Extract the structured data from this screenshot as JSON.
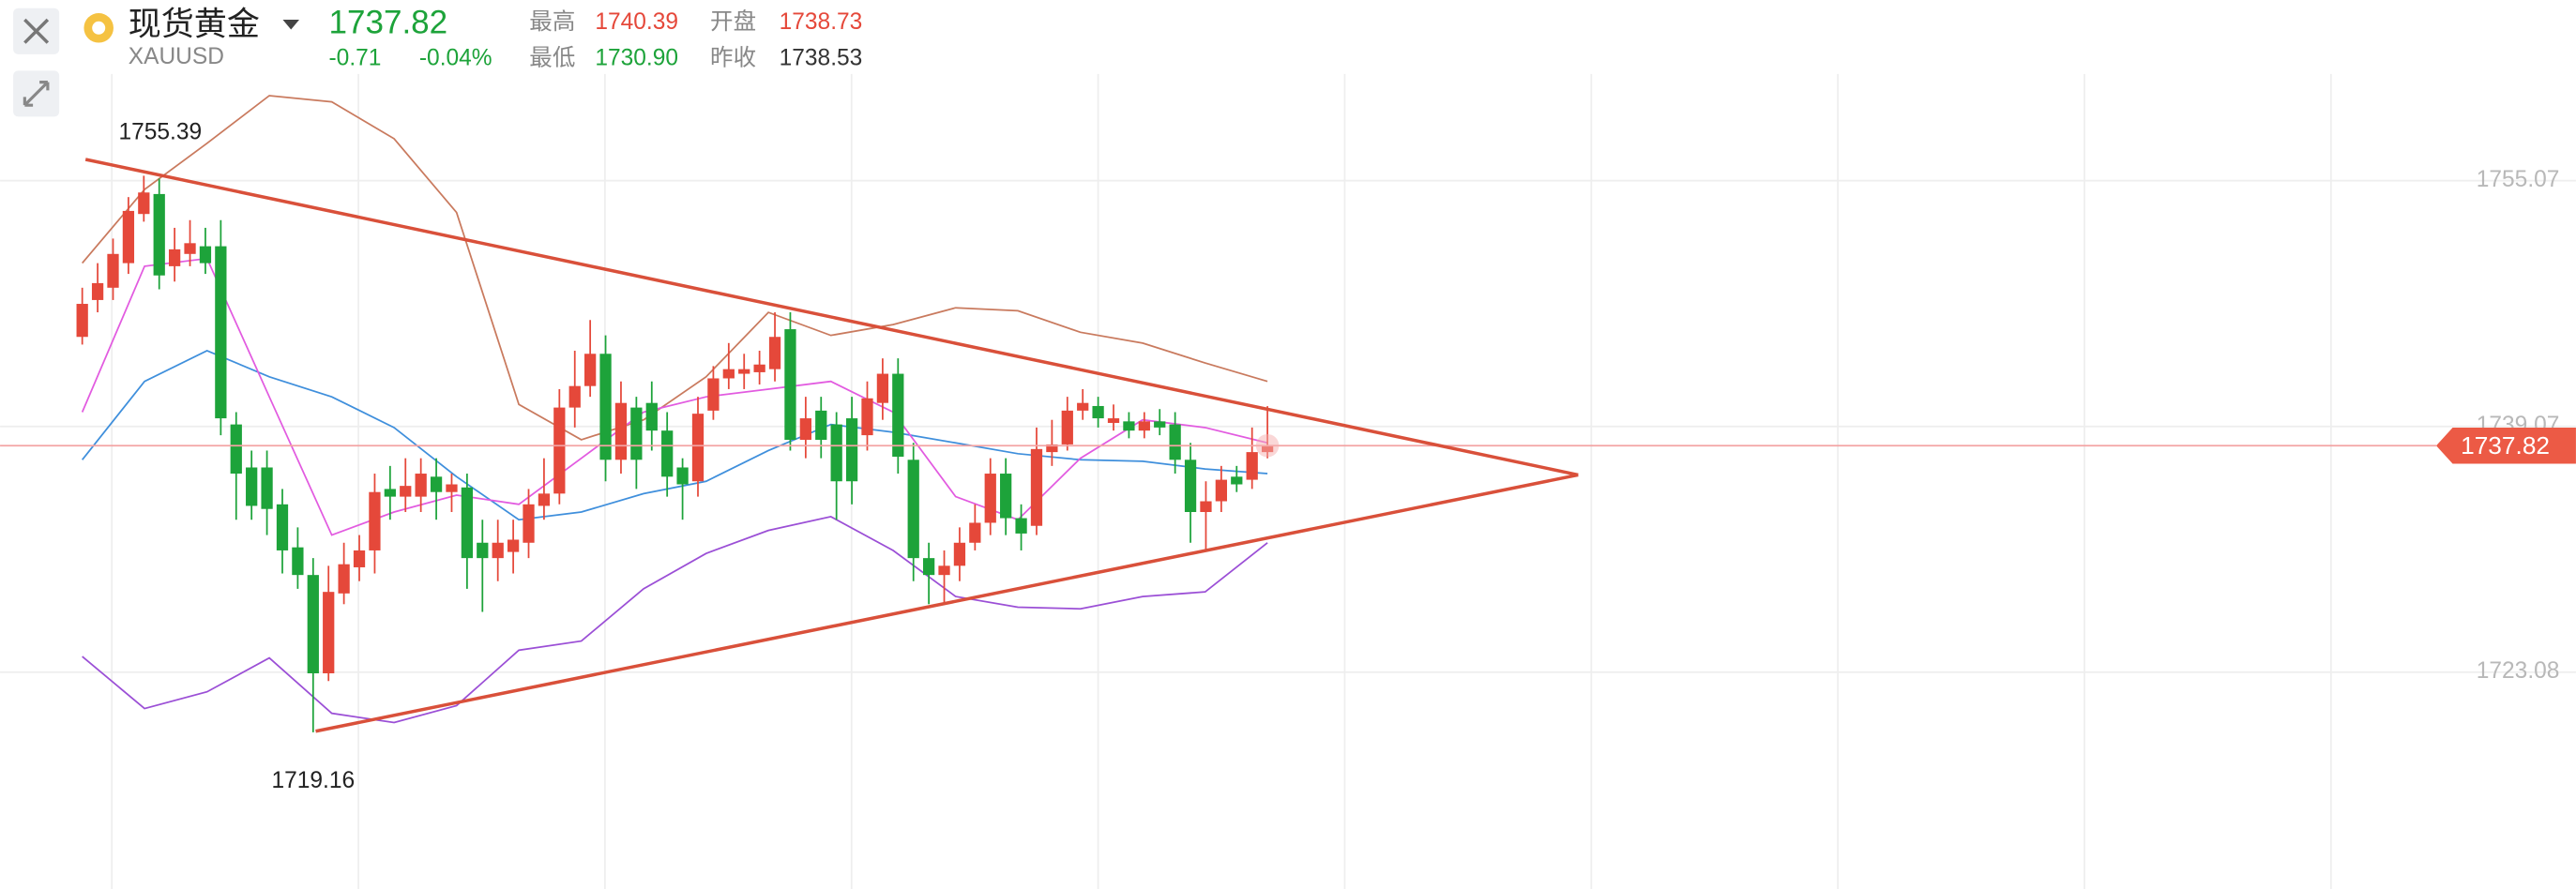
{
  "header": {
    "name": "现货黄金",
    "symbol": "XAUUSD",
    "price": "1737.82",
    "change": "-0.71",
    "change_pct": "-0.04%",
    "stats": [
      {
        "label": "最高",
        "value": "1740.39"
      },
      {
        "label": "开盘",
        "value": "1738.73"
      },
      {
        "label": "最低",
        "value": "1730.90"
      },
      {
        "label": "昨收",
        "value": "1738.53"
      }
    ]
  },
  "chart_data": {
    "type": "candlestick",
    "up_color": "#e5483a",
    "down_color": "#1da33a",
    "ylim": [
      1708.96,
      1766.83
    ],
    "yticks": [
      1723.08,
      1739.07,
      1755.07
    ],
    "grid": true,
    "last_price": 1737.82,
    "high_label": 1755.39,
    "low_label": 1719.16,
    "open": [
      1744.9,
      1747.3,
      1748.1,
      1749.7,
      1752.9,
      1754.2,
      1749.5,
      1750.3,
      1750.8,
      1750.8,
      1739.2,
      1736.4,
      1736.4,
      1734.0,
      1731.2,
      1729.4,
      1723.0,
      1728.2,
      1729.9,
      1731.0,
      1735.0,
      1734.5,
      1734.5,
      1735.8,
      1734.8,
      1735.1,
      1731.5,
      1730.5,
      1730.9,
      1731.5,
      1733.9,
      1734.7,
      1740.3,
      1741.7,
      1743.8,
      1736.9,
      1740.3,
      1740.6,
      1738.8,
      1736.4,
      1735.5,
      1740.1,
      1742.2,
      1742.5,
      1742.6,
      1742.8,
      1745.4,
      1738.2,
      1740.1,
      1739.2,
      1739.6,
      1738.5,
      1740.6,
      1742.5,
      1736.9,
      1730.5,
      1729.4,
      1730.0,
      1731.5,
      1732.8,
      1736.0,
      1733.1,
      1732.6,
      1737.4,
      1737.9,
      1740.1,
      1740.4,
      1739.3,
      1739.4,
      1738.8,
      1739.4,
      1739.2,
      1736.9,
      1733.5,
      1734.2,
      1735.8,
      1735.6,
      1737.4
    ],
    "high": [
      1748.1,
      1749.7,
      1751.3,
      1754.0,
      1755.39,
      1755.2,
      1752.0,
      1752.5,
      1752.0,
      1752.5,
      1740.0,
      1737.5,
      1737.5,
      1735.0,
      1732.5,
      1730.5,
      1730.0,
      1731.5,
      1732.0,
      1736.0,
      1736.5,
      1737.0,
      1737.0,
      1737.0,
      1736.0,
      1736.0,
      1733.0,
      1733.0,
      1733.0,
      1735.0,
      1737.0,
      1741.5,
      1744.0,
      1746.0,
      1745.0,
      1742.0,
      1741.0,
      1742.0,
      1740.0,
      1737.0,
      1741.0,
      1743.0,
      1744.5,
      1743.8,
      1744.0,
      1746.5,
      1746.5,
      1741.0,
      1741.0,
      1740.0,
      1741.0,
      1742.0,
      1743.5,
      1743.5,
      1738.0,
      1731.5,
      1731.0,
      1732.5,
      1734.0,
      1737.0,
      1737.0,
      1734.0,
      1739.0,
      1739.5,
      1741.0,
      1741.5,
      1741.0,
      1740.5,
      1740.0,
      1740.0,
      1740.2,
      1740.0,
      1738.0,
      1735.5,
      1736.5,
      1736.5,
      1739.0,
      1740.39
    ],
    "low": [
      1744.4,
      1746.5,
      1747.3,
      1749.0,
      1752.4,
      1748.0,
      1748.5,
      1749.5,
      1749.0,
      1738.5,
      1733.0,
      1733.0,
      1732.0,
      1729.5,
      1728.5,
      1719.16,
      1722.5,
      1727.5,
      1729.0,
      1729.5,
      1733.0,
      1733.5,
      1733.5,
      1733.0,
      1733.5,
      1728.5,
      1727.0,
      1729.0,
      1729.5,
      1730.5,
      1733.0,
      1734.0,
      1739.0,
      1741.0,
      1735.5,
      1736.0,
      1735.0,
      1737.5,
      1734.5,
      1733.0,
      1734.5,
      1739.5,
      1741.5,
      1741.5,
      1741.8,
      1742.0,
      1737.5,
      1737.0,
      1737.0,
      1733.0,
      1734.0,
      1737.5,
      1739.5,
      1736.0,
      1729.0,
      1727.5,
      1727.5,
      1729.0,
      1731.0,
      1732.0,
      1732.0,
      1731.0,
      1732.0,
      1736.5,
      1737.5,
      1739.5,
      1739.0,
      1738.8,
      1738.3,
      1738.3,
      1738.5,
      1736.0,
      1731.5,
      1731.0,
      1733.5,
      1734.8,
      1735.0,
      1737.0
    ],
    "close": [
      1747.05,
      1748.4,
      1750.3,
      1753.1,
      1754.3,
      1748.9,
      1750.6,
      1751.0,
      1749.7,
      1739.6,
      1736.0,
      1733.9,
      1733.7,
      1731.0,
      1729.4,
      1723.0,
      1728.3,
      1730.1,
      1731.0,
      1734.8,
      1734.5,
      1735.2,
      1736.0,
      1734.8,
      1735.3,
      1730.5,
      1730.5,
      1731.5,
      1731.7,
      1734.0,
      1734.7,
      1740.3,
      1741.7,
      1743.8,
      1736.9,
      1740.6,
      1736.9,
      1738.8,
      1735.8,
      1735.3,
      1739.9,
      1742.2,
      1742.8,
      1742.8,
      1743.1,
      1744.9,
      1738.2,
      1739.6,
      1738.2,
      1735.5,
      1735.5,
      1740.9,
      1742.5,
      1737.1,
      1730.5,
      1729.4,
      1730.0,
      1731.5,
      1732.8,
      1736.0,
      1733.1,
      1732.1,
      1737.6,
      1737.9,
      1740.1,
      1740.6,
      1739.6,
      1739.6,
      1738.8,
      1739.4,
      1739.0,
      1736.9,
      1733.5,
      1734.2,
      1735.6,
      1735.3,
      1737.4,
      1737.82
    ],
    "indicators": [
      {
        "color": "#c97a5e",
        "values": [
          1749.7,
          1754.5,
          1757.5,
          1760.6,
          1760.2,
          1757.8,
          1753.0,
          1740.5,
          1738.2,
          1739.5,
          1742.3,
          1746.5,
          1745.0,
          1745.7,
          1746.8,
          1746.6,
          1745.2,
          1744.5,
          1743.2,
          1742.0
        ]
      },
      {
        "color": "#9b4fd6",
        "values": [
          1724.1,
          1720.7,
          1721.8,
          1724.0,
          1720.4,
          1719.8,
          1720.9,
          1724.5,
          1725.1,
          1728.5,
          1730.8,
          1732.3,
          1733.2,
          1731.0,
          1728.0,
          1727.3,
          1727.2,
          1728.0,
          1728.3,
          1731.5
        ]
      },
      {
        "color": "#3f8fdc",
        "values": [
          1736.9,
          1742.0,
          1744.0,
          1742.3,
          1741.0,
          1739.0,
          1735.8,
          1733.0,
          1733.5,
          1734.7,
          1735.5,
          1737.5,
          1739.2,
          1738.7,
          1738.0,
          1737.3,
          1736.9,
          1736.8,
          1736.3,
          1736.0
        ]
      },
      {
        "color": "#e25be0",
        "values": [
          1740.0,
          1749.5,
          1750.0,
          1741.0,
          1732.0,
          1733.5,
          1734.6,
          1734.0,
          1737.0,
          1740.0,
          1741.0,
          1741.5,
          1742.0,
          1740.0,
          1734.5,
          1733.0,
          1737.0,
          1739.5,
          1739.0,
          1738.0
        ]
      }
    ]
  }
}
